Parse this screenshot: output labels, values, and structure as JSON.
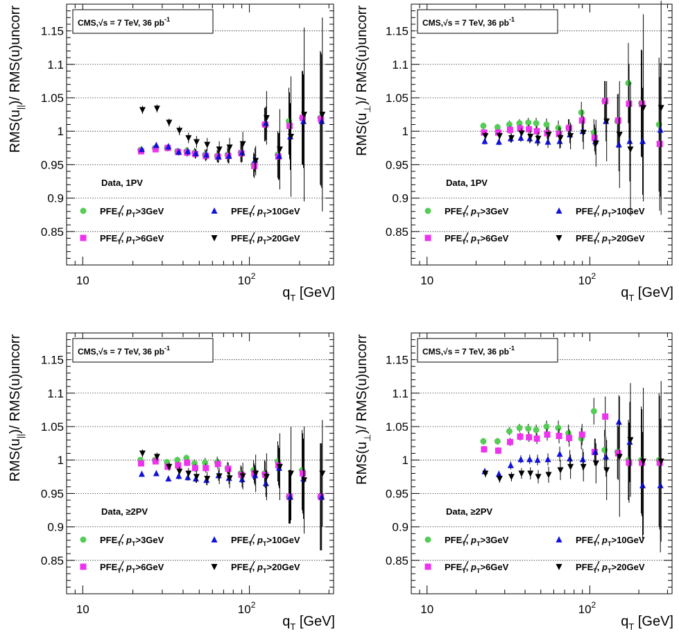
{
  "figure": {
    "y_axis_top_text": "RMS(u",
    "y_axis_top_mid": ")/ RMS(u)uncorr",
    "x_axis_text": "q",
    "x_axis_sub": "T",
    "x_axis_unit": " [GeV]",
    "cms_prefix": "CMS,",
    "cms_sqrt": "√s",
    "cms_suffix": " = 7 TeV, 36 pb",
    "cms_sup": "-1",
    "legend_labels": [
      {
        "pre": "PFE",
        "post": ", ",
        "p": "p",
        "sub": "T",
        "cut": ">3GeV"
      },
      {
        "pre": "PFE",
        "post": ", ",
        "p": "p",
        "sub": "T",
        "cut": ">10GeV"
      },
      {
        "pre": "PFE",
        "post": ", ",
        "p": "p",
        "sub": "T",
        "cut": ">6GeV"
      },
      {
        "pre": "PFE",
        "post": ", ",
        "p": "p",
        "sub": "T",
        "cut": ">20GeV"
      }
    ],
    "colors": {
      "green": "#55cc55",
      "magenta": "#ee33ee",
      "blue": "#1111dd",
      "black": "#000000"
    }
  },
  "chart_data": [
    {
      "type": "scatter",
      "panel": "top-left",
      "ylabel_sub": "||",
      "data_label": "Data,  1PV",
      "xscale": "log",
      "xlim": [
        8,
        320
      ],
      "ylim": [
        0.8,
        1.19
      ],
      "yticks": [
        0.85,
        0.9,
        0.95,
        1,
        1.05,
        1.1,
        1.15
      ],
      "xtick_labels": [
        "10",
        "10",
        "2"
      ],
      "grid": "horizontal",
      "x": [
        22.5,
        27.5,
        32.5,
        37.5,
        42.5,
        47.5,
        55,
        65,
        75,
        90,
        107.5,
        125,
        150,
        175,
        210,
        270
      ],
      "series": [
        {
          "name": "PFE_T, p_T>3GeV",
          "marker": "circle",
          "color": "green",
          "y": [
            0.972,
            0.975,
            0.975,
            0.97,
            0.97,
            0.968,
            0.965,
            0.963,
            0.965,
            0.968,
            0.95,
            1.01,
            0.965,
            1.015,
            1.02,
            1.02
          ],
          "err": [
            0.004,
            0.004,
            0.005,
            0.005,
            0.006,
            0.007,
            0.008,
            0.009,
            0.011,
            0.014,
            0.018,
            0.025,
            0.035,
            0.05,
            0.07,
            0.1
          ]
        },
        {
          "name": "PFE_T, p_T>6GeV",
          "marker": "square",
          "color": "magenta",
          "y": [
            0.97,
            0.973,
            0.975,
            0.969,
            0.968,
            0.966,
            0.963,
            0.962,
            0.963,
            0.967,
            0.948,
            1.01,
            0.962,
            1.008,
            1.02,
            1.018
          ],
          "err": [
            0.004,
            0.004,
            0.005,
            0.005,
            0.006,
            0.007,
            0.008,
            0.009,
            0.011,
            0.014,
            0.018,
            0.025,
            0.035,
            0.05,
            0.07,
            0.1
          ]
        },
        {
          "name": "PFE_T, p_T>10GeV",
          "marker": "triangle-up",
          "color": "blue",
          "y": [
            0.973,
            0.979,
            0.977,
            0.969,
            0.97,
            0.967,
            0.965,
            0.962,
            0.963,
            0.968,
            0.957,
            1.012,
            0.963,
            0.992,
            1.015,
            1.015
          ],
          "err": [
            0.004,
            0.004,
            0.005,
            0.005,
            0.006,
            0.007,
            0.008,
            0.009,
            0.011,
            0.014,
            0.018,
            0.025,
            0.035,
            0.05,
            0.07,
            0.1
          ]
        },
        {
          "name": "PFE_T, p_T>20GeV",
          "marker": "triangle-down",
          "color": "black",
          "y": [
            1.032,
            1.034,
            1.013,
            1.001,
            0.99,
            0.984,
            0.98,
            0.973,
            0.976,
            0.981,
            0.956,
            1.02,
            0.973,
            0.992,
            1.025,
            1.025
          ],
          "err": [
            0.006,
            0.006,
            0.006,
            0.007,
            0.008,
            0.009,
            0.01,
            0.012,
            0.014,
            0.018,
            0.022,
            0.04,
            0.06,
            0.09,
            0.13,
            0.145
          ]
        }
      ]
    },
    {
      "type": "scatter",
      "panel": "top-right",
      "ylabel_sub": "⊥",
      "data_label": "Data,  1PV",
      "xscale": "log",
      "xlim": [
        8,
        320
      ],
      "ylim": [
        0.8,
        1.19
      ],
      "yticks": [
        0.85,
        0.9,
        0.95,
        1,
        1.05,
        1.1,
        1.15
      ],
      "xtick_labels": [
        "10",
        "10",
        "2"
      ],
      "grid": "horizontal",
      "x": [
        22.5,
        27.5,
        32.5,
        37.5,
        42.5,
        47.5,
        55,
        65,
        75,
        90,
        107.5,
        125,
        150,
        175,
        210,
        270
      ],
      "series": [
        {
          "name": "PFE_T, p_T>3GeV",
          "marker": "circle",
          "color": "green",
          "y": [
            1.008,
            1.006,
            1.01,
            1.012,
            1.013,
            1.012,
            1.01,
            1.005,
            1.005,
            1.028,
            0.998,
            1.045,
            1.015,
            1.072,
            1.042,
            1.01
          ],
          "err": [
            0.005,
            0.005,
            0.006,
            0.006,
            0.007,
            0.008,
            0.009,
            0.011,
            0.013,
            0.016,
            0.02,
            0.03,
            0.04,
            0.06,
            0.08,
            0.1
          ]
        },
        {
          "name": "PFE_T, p_T>6GeV",
          "marker": "square",
          "color": "magenta",
          "y": [
            0.998,
            0.998,
            1.002,
            1.004,
            1.003,
            1.0,
            0.997,
            0.996,
            1.005,
            1.016,
            0.99,
            1.045,
            1.016,
            1.041,
            1.041,
            0.981
          ],
          "err": [
            0.005,
            0.005,
            0.006,
            0.006,
            0.007,
            0.008,
            0.009,
            0.011,
            0.013,
            0.016,
            0.02,
            0.03,
            0.04,
            0.06,
            0.08,
            0.1
          ]
        },
        {
          "name": "PFE_T, p_T>10GeV",
          "marker": "triangle-up",
          "color": "blue",
          "y": [
            0.985,
            0.984,
            0.989,
            0.99,
            0.989,
            0.986,
            0.984,
            0.985,
            0.995,
            1.0,
            0.985,
            1.015,
            0.98,
            0.985,
            0.985,
            1.002
          ],
          "err": [
            0.005,
            0.005,
            0.006,
            0.006,
            0.007,
            0.008,
            0.009,
            0.011,
            0.013,
            0.016,
            0.02,
            0.03,
            0.04,
            0.06,
            0.08,
            0.1
          ]
        },
        {
          "name": "PFE_T, p_T>20GeV",
          "marker": "triangle-down",
          "color": "black",
          "y": [
            0.993,
            0.993,
            0.99,
            0.997,
            0.992,
            0.989,
            0.995,
            0.99,
            0.993,
            0.998,
            0.982,
            1.015,
            0.995,
            0.973,
            1.035,
            1.035
          ],
          "err": [
            0.006,
            0.006,
            0.007,
            0.008,
            0.009,
            0.01,
            0.012,
            0.015,
            0.02,
            0.025,
            0.035,
            0.06,
            0.08,
            0.1,
            0.14,
            0.16
          ]
        }
      ]
    },
    {
      "type": "scatter",
      "panel": "bottom-left",
      "ylabel_sub": "||",
      "data_label": "Data,  ≥2PV",
      "xscale": "log",
      "xlim": [
        8,
        320
      ],
      "ylim": [
        0.8,
        1.19
      ],
      "yticks": [
        0.85,
        0.9,
        0.95,
        1,
        1.05,
        1.1,
        1.15
      ],
      "xtick_labels": [
        "10",
        "10",
        "2"
      ],
      "grid": "horizontal",
      "x": [
        22.5,
        27.5,
        32.5,
        37.5,
        42.5,
        47.5,
        55,
        65,
        75,
        90,
        107.5,
        125,
        150,
        175,
        210,
        270
      ],
      "series": [
        {
          "name": "PFE_T, p_T>3GeV",
          "marker": "circle",
          "color": "green",
          "y": [
            1.0,
            1.0,
            0.997,
            1.0,
            1.003,
            0.995,
            0.996,
            0.997,
            0.988,
            0.98,
            0.985,
            0.98,
            0.998,
            0.945,
            0.985,
            0.945
          ],
          "err": [
            0.004,
            0.004,
            0.004,
            0.005,
            0.005,
            0.006,
            0.007,
            0.008,
            0.009,
            0.012,
            0.015,
            0.02,
            0.03,
            0.04,
            0.06,
            0.08
          ]
        },
        {
          "name": "PFE_T, p_T>6GeV",
          "marker": "square",
          "color": "magenta",
          "y": [
            0.995,
            0.998,
            0.99,
            0.992,
            0.996,
            0.988,
            0.988,
            0.994,
            0.987,
            0.978,
            0.98,
            0.978,
            0.992,
            0.945,
            0.98,
            0.945
          ],
          "err": [
            0.004,
            0.004,
            0.004,
            0.005,
            0.005,
            0.006,
            0.007,
            0.008,
            0.009,
            0.012,
            0.015,
            0.02,
            0.03,
            0.04,
            0.06,
            0.08
          ]
        },
        {
          "name": "PFE_T, p_T>10GeV",
          "marker": "triangle-up",
          "color": "blue",
          "y": [
            0.979,
            0.98,
            0.972,
            0.976,
            0.974,
            0.972,
            0.97,
            0.977,
            0.973,
            0.971,
            0.977,
            0.965,
            0.988,
            0.945,
            0.972,
            0.945
          ],
          "err": [
            0.004,
            0.004,
            0.004,
            0.005,
            0.005,
            0.006,
            0.007,
            0.008,
            0.009,
            0.012,
            0.015,
            0.02,
            0.03,
            0.04,
            0.06,
            0.08
          ]
        },
        {
          "name": "PFE_T, p_T>20GeV",
          "marker": "triangle-down",
          "color": "black",
          "y": [
            1.01,
            1.005,
            0.99,
            0.983,
            0.98,
            0.975,
            0.972,
            0.976,
            0.973,
            0.976,
            0.98,
            0.975,
            0.99,
            0.98,
            0.97,
            0.98
          ],
          "err": [
            0.006,
            0.006,
            0.006,
            0.007,
            0.008,
            0.009,
            0.01,
            0.012,
            0.015,
            0.02,
            0.028,
            0.035,
            0.05,
            0.07,
            0.08,
            0.08
          ]
        }
      ]
    },
    {
      "type": "scatter",
      "panel": "bottom-right",
      "ylabel_sub": "⊥",
      "data_label": "Data,  ≥2PV",
      "xscale": "log",
      "xlim": [
        8,
        320
      ],
      "ylim": [
        0.8,
        1.19
      ],
      "yticks": [
        0.85,
        0.9,
        0.95,
        1,
        1.05,
        1.1,
        1.15
      ],
      "xtick_labels": [
        "10",
        "10",
        "2"
      ],
      "grid": "horizontal",
      "x": [
        22.5,
        27.5,
        32.5,
        37.5,
        42.5,
        47.5,
        55,
        65,
        75,
        90,
        107.5,
        125,
        150,
        175,
        210,
        270
      ],
      "series": [
        {
          "name": "PFE_T, p_T>3GeV",
          "marker": "circle",
          "color": "green",
          "y": [
            1.028,
            1.028,
            1.043,
            1.048,
            1.047,
            1.045,
            1.05,
            1.048,
            1.04,
            1.032,
            1.073,
            1.015,
            1.012,
            1.0,
            1.0,
            1.0
          ],
          "err": [
            0.005,
            0.005,
            0.006,
            0.006,
            0.007,
            0.008,
            0.009,
            0.011,
            0.013,
            0.016,
            0.02,
            0.03,
            0.04,
            0.06,
            0.08,
            0.1
          ]
        },
        {
          "name": "PFE_T, p_T>6GeV",
          "marker": "square",
          "color": "magenta",
          "y": [
            1.016,
            1.014,
            1.027,
            1.035,
            1.034,
            1.032,
            1.038,
            1.036,
            1.033,
            1.038,
            1.012,
            1.065,
            1.01,
            0.996,
            0.996,
            0.996
          ],
          "err": [
            0.005,
            0.005,
            0.006,
            0.006,
            0.007,
            0.008,
            0.009,
            0.011,
            0.013,
            0.016,
            0.02,
            0.03,
            0.04,
            0.06,
            0.08,
            0.1
          ]
        },
        {
          "name": "PFE_T, p_T>10GeV",
          "marker": "triangle-up",
          "color": "blue",
          "y": [
            0.983,
            0.979,
            0.992,
            1.001,
            1.001,
            1.0,
            1.001,
            1.009,
            1.002,
            1.001,
            1.012,
            1.005,
            1.057,
            1.027,
            0.962,
            0.962
          ],
          "err": [
            0.005,
            0.005,
            0.006,
            0.006,
            0.007,
            0.008,
            0.009,
            0.011,
            0.013,
            0.016,
            0.02,
            0.03,
            0.04,
            0.06,
            0.08,
            0.1
          ]
        },
        {
          "name": "PFE_T, p_T>20GeV",
          "marker": "triangle-down",
          "color": "black",
          "y": [
            0.98,
            0.972,
            0.975,
            0.98,
            0.98,
            0.975,
            0.978,
            0.985,
            0.99,
            0.99,
            0.995,
            0.985,
            1.005,
            1.03,
            0.998,
            0.998
          ],
          "err": [
            0.006,
            0.006,
            0.007,
            0.008,
            0.009,
            0.01,
            0.012,
            0.015,
            0.018,
            0.022,
            0.03,
            0.045,
            0.09,
            0.085,
            0.11,
            0.12
          ]
        }
      ]
    }
  ]
}
